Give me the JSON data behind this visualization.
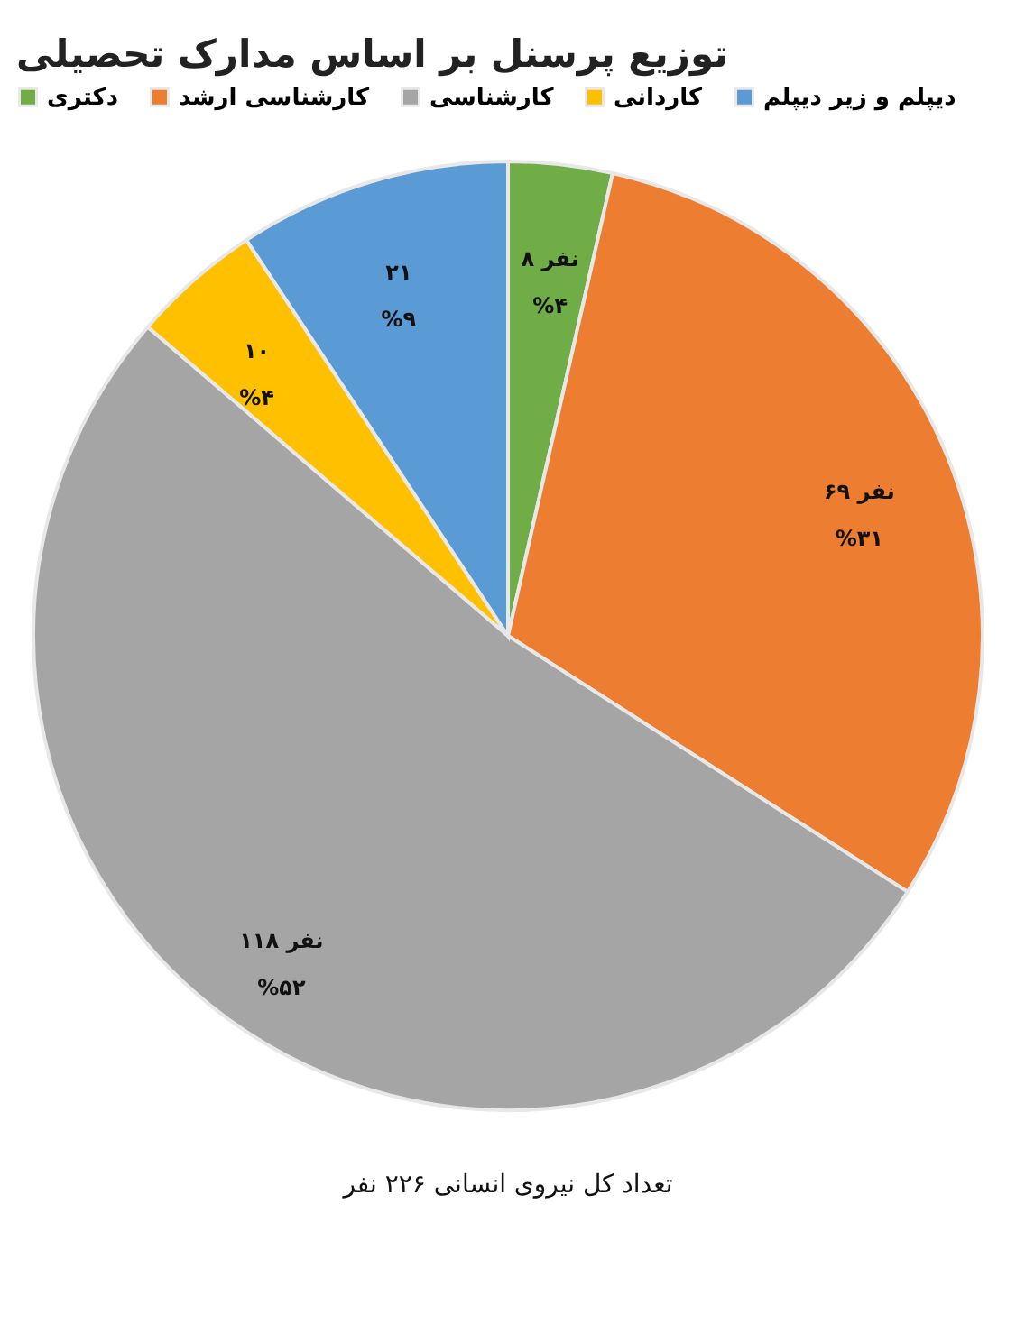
{
  "chart_data": {
    "type": "pie",
    "title": "توزیع پرسنل بر اساس مدارک تحصیلی",
    "categories": [
      "دکتری",
      "کارشناسی ارشد",
      "کارشناسی",
      "کاردانی",
      "دیپلم و زیر دیپلم"
    ],
    "values": [
      8,
      69,
      118,
      10,
      21
    ],
    "colors": [
      "#70ad47",
      "#ed7d31",
      "#a5a5a5",
      "#ffc000",
      "#5b9bd5"
    ],
    "value_labels": [
      "۸ نفر\n%۴",
      "۶۹ نفر\n%۳۱",
      "۱۱۸ نفر\n%۵۲",
      "۱۰\n%۴",
      "۲۱\n%۹"
    ],
    "legend": "top",
    "annotations": [
      "تعداد کل نیروی انسانی ۲۲۶ نفر"
    ]
  }
}
